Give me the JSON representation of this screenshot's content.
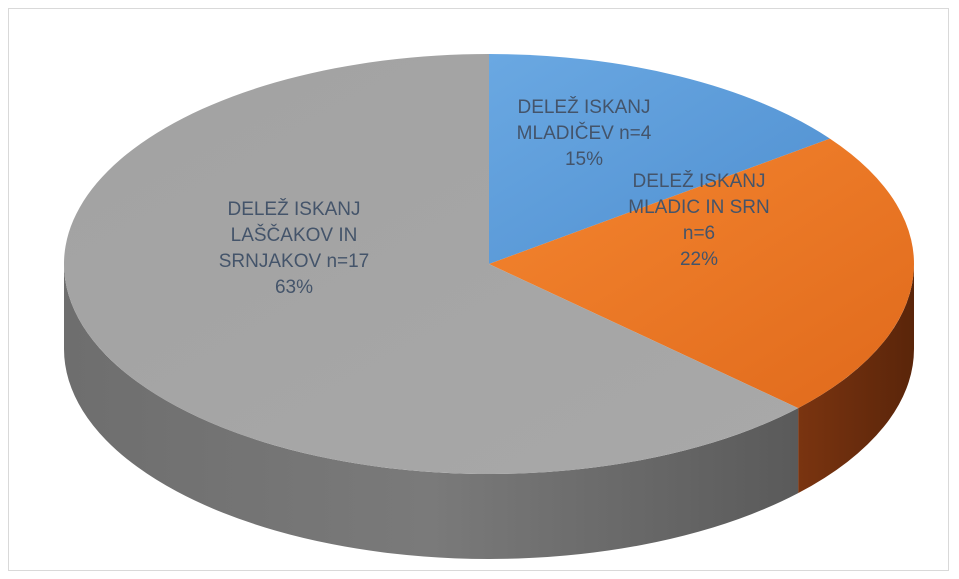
{
  "chart_data": {
    "type": "pie",
    "style": "3d",
    "categories": [
      "DELEŽ ISKANJ MLADIČEV",
      "DELEŽ ISKANJ MLADIC IN SRN",
      "DELEŽ ISKANJ LAŠČAKOV IN SRNJAKOV"
    ],
    "values": [
      4,
      6,
      17
    ],
    "percents": [
      "15%",
      "22%",
      "63%"
    ],
    "colors": [
      "#5b9bd5",
      "#ed7d31",
      "#a5a5a5"
    ],
    "labels": [
      {
        "lines": [
          "DELEŽ ISKANJ",
          "MLADIČEV n=4",
          "15%"
        ]
      },
      {
        "lines": [
          "DELEŽ ISKANJ",
          "MLADIC IN SRN",
          "n=6",
          "22%"
        ]
      },
      {
        "lines": [
          "DELEŽ ISKANJ",
          "LAŠČAKOV IN",
          "SRNJAKOV n=17",
          "63%"
        ]
      }
    ],
    "title": "",
    "legend": "none",
    "label_color": "#44546a"
  }
}
